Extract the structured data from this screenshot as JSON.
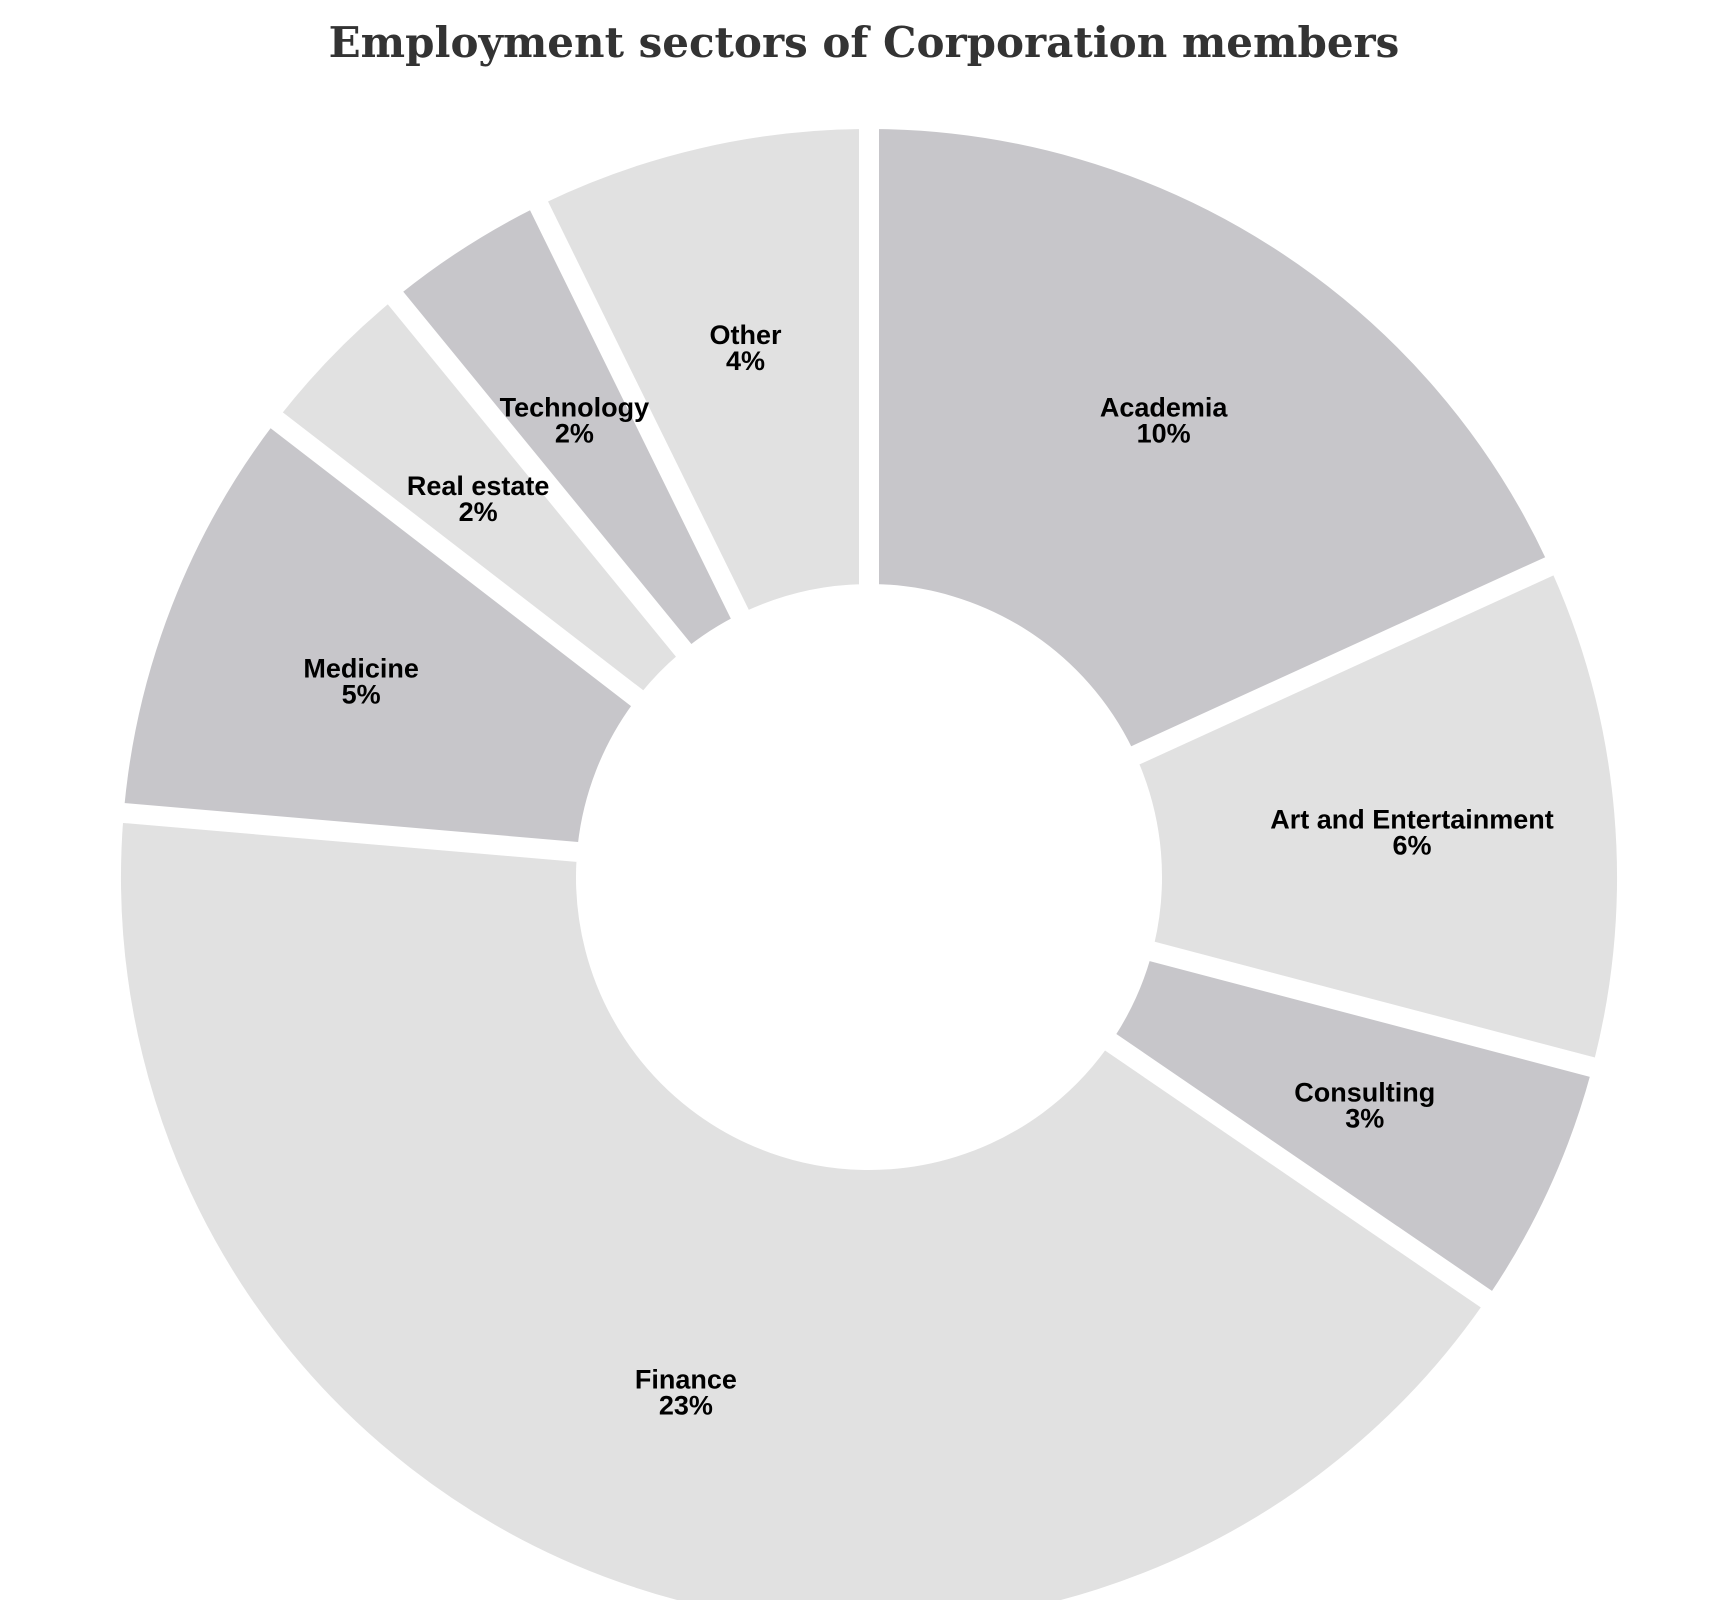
{
  "chart_data": {
    "type": "pie",
    "variant": "donut",
    "title": "Employment sectors of Corporation members",
    "start_angle_deg": 0,
    "direction": "clockwise",
    "slices": [
      {
        "label": "Academia",
        "value": 10,
        "display": "10%",
        "color": "#c7c6ca"
      },
      {
        "label": "Art and Entertainment",
        "value": 6,
        "display": "6%",
        "color": "#e1e1e1"
      },
      {
        "label": "Consulting",
        "value": 3,
        "display": "3%",
        "color": "#c7c6ca"
      },
      {
        "label": "Finance",
        "value": 23,
        "display": "23%",
        "color": "#e1e1e1"
      },
      {
        "label": "Medicine",
        "value": 5,
        "display": "5%",
        "color": "#c7c6ca"
      },
      {
        "label": "Real estate",
        "value": 2,
        "display": "2%",
        "color": "#e1e1e1"
      },
      {
        "label": "Technology",
        "value": 2,
        "display": "2%",
        "color": "#c7c6ca"
      },
      {
        "label": "Other",
        "value": 4,
        "display": "4%",
        "color": "#e1e1e1"
      }
    ]
  }
}
